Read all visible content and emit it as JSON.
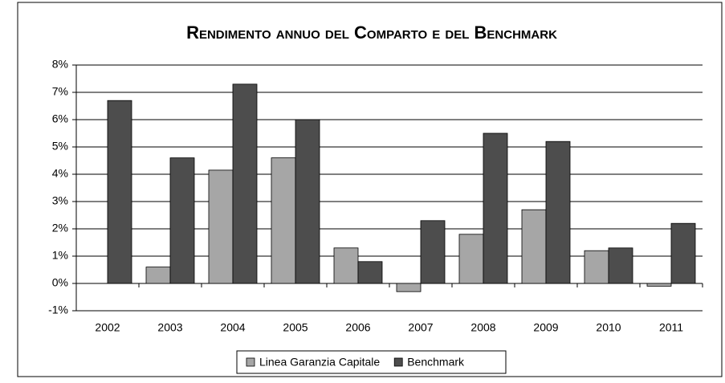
{
  "chart_data": {
    "type": "bar",
    "title": "Rendimento annuo del Comparto e del Benchmark",
    "categories": [
      "2002",
      "2003",
      "2004",
      "2005",
      "2006",
      "2007",
      "2008",
      "2009",
      "2010",
      "2011"
    ],
    "series": [
      {
        "name": "Linea Garanzia Capitale",
        "color": "#a6a6a6",
        "values": [
          null,
          0.6,
          4.15,
          4.6,
          1.3,
          -0.3,
          1.8,
          2.7,
          1.2,
          -0.1
        ]
      },
      {
        "name": "Benchmark",
        "color": "#4d4d4d",
        "values": [
          6.7,
          4.6,
          7.3,
          6.0,
          0.8,
          2.3,
          5.5,
          5.2,
          1.3,
          2.2
        ]
      }
    ],
    "ylim": [
      -1,
      8
    ],
    "yticks": [
      {
        "value": -1,
        "label": "-1%"
      },
      {
        "value": 0,
        "label": "0%"
      },
      {
        "value": 1,
        "label": "1%"
      },
      {
        "value": 2,
        "label": "2%"
      },
      {
        "value": 3,
        "label": "3%"
      },
      {
        "value": 4,
        "label": "4%"
      },
      {
        "value": 5,
        "label": "5%"
      },
      {
        "value": 6,
        "label": "6%"
      },
      {
        "value": 7,
        "label": "7%"
      },
      {
        "value": 8,
        "label": "8%"
      }
    ],
    "grid": true,
    "legend": "bottom"
  }
}
